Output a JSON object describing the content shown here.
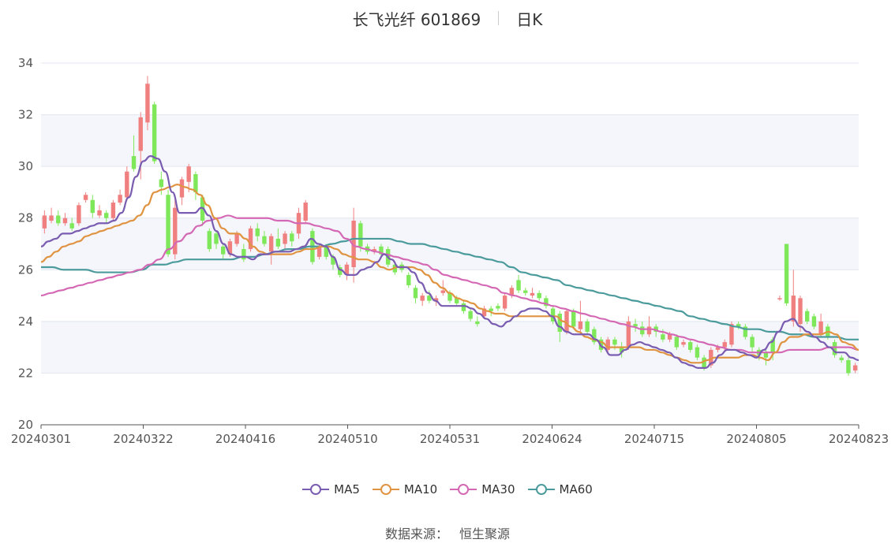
{
  "header": {
    "title": "长飞光纤 601869",
    "period": "日K"
  },
  "source": {
    "label": "数据来源：",
    "name": "恒生聚源"
  },
  "colors": {
    "up": "#f08080",
    "down": "#7ee85a",
    "ma5": "#7a5cb0",
    "ma10": "#e09442",
    "ma30": "#d468b4",
    "ma60": "#4c9b9c",
    "grid": "#e0e6f1",
    "band": "#f4f6fb"
  },
  "chart_data": {
    "type": "candlestick",
    "ylim": [
      20,
      34
    ],
    "yticks": [
      "20",
      "22",
      "24",
      "26",
      "28",
      "30",
      "32",
      "34"
    ],
    "xticks": [
      "20240301",
      "20240322",
      "20240416",
      "20240510",
      "20240531",
      "20240624",
      "20240715",
      "20240805",
      "20240823"
    ],
    "legend": [
      "MA5",
      "MA10",
      "MA30",
      "MA60"
    ],
    "candles": [
      [
        27.6,
        28.1,
        28.3,
        27.4
      ],
      [
        27.9,
        28.1,
        28.4,
        27.8
      ],
      [
        28.1,
        27.8,
        28.3,
        27.7
      ],
      [
        27.8,
        28.0,
        28.2,
        27.7
      ],
      [
        27.8,
        27.6,
        28.0,
        27.5
      ],
      [
        27.8,
        28.5,
        28.6,
        27.7
      ],
      [
        28.7,
        28.9,
        29.0,
        28.6
      ],
      [
        28.7,
        28.2,
        28.9,
        28.0
      ],
      [
        28.1,
        28.3,
        28.5,
        28.0
      ],
      [
        28.2,
        28.0,
        28.3,
        27.8
      ],
      [
        28.0,
        28.6,
        28.7,
        27.9
      ],
      [
        28.6,
        28.9,
        29.1,
        28.5
      ],
      [
        28.8,
        29.8,
        30.0,
        28.7
      ],
      [
        30.4,
        29.9,
        31.2,
        29.8
      ],
      [
        30.6,
        31.9,
        32.1,
        29.5
      ],
      [
        31.7,
        33.2,
        33.5,
        31.4
      ],
      [
        32.4,
        30.2,
        32.5,
        30.1
      ],
      [
        29.5,
        29.2,
        29.8,
        28.9
      ],
      [
        28.9,
        26.6,
        29.1,
        26.5
      ],
      [
        26.6,
        28.4,
        28.8,
        26.4
      ],
      [
        28.8,
        29.5,
        29.6,
        28.5
      ],
      [
        29.4,
        30.0,
        30.1,
        29.0
      ],
      [
        29.7,
        29.0,
        29.8,
        28.7
      ],
      [
        28.8,
        27.9,
        28.9,
        27.7
      ],
      [
        27.5,
        26.8,
        27.6,
        26.7
      ],
      [
        27.4,
        27.0,
        27.5,
        26.8
      ],
      [
        26.9,
        26.6,
        27.0,
        26.4
      ],
      [
        26.6,
        27.1,
        27.2,
        26.5
      ],
      [
        27.0,
        27.4,
        27.5,
        26.9
      ],
      [
        26.8,
        26.4,
        27.0,
        26.3
      ],
      [
        26.8,
        27.6,
        27.7,
        26.7
      ],
      [
        27.6,
        27.3,
        27.8,
        27.1
      ],
      [
        27.3,
        27.0,
        27.5,
        26.9
      ],
      [
        26.7,
        27.3,
        27.4,
        26.2
      ],
      [
        27.2,
        26.9,
        27.6,
        26.8
      ],
      [
        27.0,
        27.4,
        27.5,
        26.8
      ],
      [
        27.4,
        27.1,
        27.5,
        26.9
      ],
      [
        27.4,
        28.2,
        28.4,
        27.2
      ],
      [
        27.9,
        28.6,
        28.7,
        27.8
      ],
      [
        27.5,
        26.3,
        27.6,
        26.2
      ],
      [
        26.5,
        26.9,
        27.0,
        26.4
      ],
      [
        26.9,
        26.5,
        27.0,
        26.4
      ],
      [
        26.5,
        26.2,
        26.6,
        26.0
      ],
      [
        26.1,
        25.8,
        26.2,
        25.7
      ],
      [
        25.8,
        26.2,
        26.3,
        25.6
      ],
      [
        26.1,
        27.9,
        28.4,
        25.5
      ],
      [
        27.8,
        26.9,
        27.9,
        26.7
      ],
      [
        26.9,
        26.7,
        27.0,
        26.6
      ],
      [
        26.7,
        26.8,
        26.9,
        26.6
      ],
      [
        26.9,
        26.6,
        27.0,
        26.5
      ],
      [
        26.8,
        26.2,
        26.9,
        26.1
      ],
      [
        26.2,
        25.9,
        26.3,
        25.8
      ],
      [
        26.2,
        26.0,
        26.3,
        25.9
      ],
      [
        25.8,
        25.4,
        25.9,
        25.3
      ],
      [
        25.3,
        24.9,
        25.4,
        24.7
      ],
      [
        24.8,
        25.0,
        25.1,
        24.6
      ],
      [
        25.0,
        24.8,
        25.2,
        24.7
      ],
      [
        24.8,
        24.9,
        25.0,
        24.6
      ],
      [
        25.1,
        25.2,
        25.6,
        25.0
      ],
      [
        25.1,
        24.8,
        25.2,
        24.7
      ],
      [
        24.9,
        24.7,
        25.0,
        24.6
      ],
      [
        24.7,
        24.4,
        24.8,
        24.3
      ],
      [
        24.4,
        24.1,
        24.5,
        24.0
      ],
      [
        24.0,
        23.9,
        24.2,
        23.8
      ],
      [
        24.2,
        24.5,
        24.6,
        24.1
      ],
      [
        24.5,
        24.4,
        24.6,
        24.2
      ],
      [
        24.6,
        24.5,
        24.7,
        24.4
      ],
      [
        24.5,
        25.0,
        25.1,
        24.4
      ],
      [
        25.0,
        25.3,
        25.4,
        24.9
      ],
      [
        25.6,
        25.2,
        25.8,
        25.1
      ],
      [
        25.2,
        25.1,
        25.3,
        25.0
      ],
      [
        25.0,
        25.1,
        25.3,
        24.9
      ],
      [
        25.1,
        24.9,
        25.2,
        24.8
      ],
      [
        24.9,
        24.6,
        25.0,
        24.5
      ],
      [
        24.5,
        24.0,
        24.6,
        23.9
      ],
      [
        24.3,
        23.6,
        24.4,
        23.2
      ],
      [
        23.6,
        24.4,
        24.5,
        23.5
      ],
      [
        24.4,
        23.8,
        24.5,
        23.7
      ],
      [
        23.7,
        24.0,
        24.8,
        23.5
      ],
      [
        24.0,
        23.6,
        24.1,
        23.5
      ],
      [
        23.7,
        23.2,
        23.8,
        23.1
      ],
      [
        23.3,
        22.9,
        23.4,
        22.8
      ],
      [
        22.9,
        23.3,
        23.4,
        22.8
      ],
      [
        23.3,
        23.1,
        23.4,
        22.9
      ],
      [
        23.0,
        22.8,
        23.2,
        22.6
      ],
      [
        23.0,
        24.0,
        24.2,
        22.9
      ],
      [
        23.9,
        23.8,
        24.1,
        23.6
      ],
      [
        23.8,
        23.5,
        24.0,
        23.4
      ],
      [
        23.5,
        23.8,
        24.2,
        23.4
      ],
      [
        23.8,
        23.6,
        23.9,
        23.4
      ],
      [
        23.5,
        23.3,
        23.7,
        23.2
      ],
      [
        23.3,
        23.5,
        23.6,
        23.2
      ],
      [
        23.4,
        23.0,
        23.5,
        22.9
      ],
      [
        23.1,
        23.2,
        23.3,
        23.0
      ],
      [
        23.2,
        22.9,
        23.3,
        22.8
      ],
      [
        23.0,
        22.6,
        23.1,
        22.5
      ],
      [
        22.6,
        22.2,
        22.7,
        22.1
      ],
      [
        22.3,
        22.9,
        23.0,
        22.2
      ],
      [
        22.9,
        23.0,
        23.1,
        22.8
      ],
      [
        23.0,
        23.2,
        23.3,
        22.9
      ],
      [
        23.1,
        23.9,
        24.0,
        23.0
      ],
      [
        23.9,
        23.8,
        24.0,
        23.7
      ],
      [
        23.8,
        23.4,
        23.9,
        23.3
      ],
      [
        23.4,
        23.0,
        23.5,
        22.8
      ],
      [
        22.9,
        22.7,
        23.0,
        22.5
      ],
      [
        22.8,
        22.6,
        22.9,
        22.3
      ],
      [
        23.3,
        22.8,
        23.4,
        22.5
      ],
      [
        24.9,
        24.9,
        25.0,
        24.8
      ],
      [
        27.0,
        24.7,
        27.0,
        24.6
      ],
      [
        24.0,
        25.0,
        26.0,
        23.8
      ],
      [
        23.9,
        24.9,
        25.0,
        23.6
      ],
      [
        24.4,
        24.0,
        24.5,
        23.9
      ],
      [
        24.2,
        23.8,
        24.3,
        23.7
      ],
      [
        23.5,
        24.0,
        24.3,
        23.4
      ],
      [
        23.8,
        23.4,
        23.9,
        23.3
      ],
      [
        23.2,
        22.7,
        23.3,
        22.6
      ],
      [
        22.6,
        22.5,
        22.7,
        22.4
      ],
      [
        22.5,
        22.0,
        22.6,
        21.9
      ],
      [
        22.1,
        22.3,
        22.4,
        22.0
      ]
    ],
    "ma5": [
      26.9,
      27.1,
      27.2,
      27.4,
      27.4,
      27.5,
      27.6,
      27.7,
      27.8,
      27.8,
      27.9,
      28.2,
      28.8,
      29.6,
      30.2,
      30.4,
      30.3,
      29.8,
      29.0,
      28.2,
      28.2,
      28.2,
      28.4,
      28.1,
      27.5,
      27.0,
      26.6,
      26.5,
      26.5,
      26.4,
      26.6,
      26.6,
      26.7,
      26.7,
      26.7,
      26.8,
      26.9,
      27.2,
      27.0,
      26.9,
      26.5,
      26.0,
      25.8,
      25.8,
      26.0,
      26.1,
      26.3,
      26.6,
      26.4,
      26.1,
      26.1,
      25.9,
      25.5,
      25.1,
      24.8,
      24.6,
      24.6,
      24.6,
      24.6,
      24.5,
      24.3,
      24.1,
      23.9,
      23.8,
      24.0,
      24.2,
      24.4,
      24.5,
      24.5,
      24.4,
      24.2,
      23.8,
      23.6,
      23.5,
      23.5,
      23.5,
      23.3,
      23.0,
      22.7,
      22.7,
      22.9,
      23.1,
      23.2,
      23.1,
      23.0,
      22.9,
      22.8,
      22.6,
      22.4,
      22.3,
      22.2,
      22.2,
      22.4,
      22.7,
      22.9,
      22.9,
      22.8,
      22.7,
      22.6,
      22.9,
      23.2,
      23.6,
      24.0,
      24.1,
      23.8,
      23.6,
      23.4,
      23.2,
      23.0,
      22.8,
      22.8,
      22.6,
      22.5
    ],
    "ma10": [
      26.3,
      26.5,
      26.7,
      26.9,
      27.0,
      27.1,
      27.3,
      27.4,
      27.5,
      27.6,
      27.7,
      27.8,
      27.9,
      28.1,
      28.5,
      29.0,
      29.1,
      29.2,
      29.3,
      29.2,
      29.1,
      28.9,
      28.5,
      28.0,
      27.6,
      27.4,
      27.4,
      27.2,
      26.9,
      26.7,
      26.6,
      26.6,
      26.6,
      26.6,
      26.7,
      26.8,
      26.8,
      26.9,
      26.9,
      26.8,
      26.6,
      26.5,
      26.4,
      26.4,
      26.3,
      26.1,
      26.0,
      26.1,
      26.1,
      26.1,
      26.0,
      25.8,
      25.5,
      25.3,
      25.1,
      24.9,
      24.8,
      24.7,
      24.5,
      24.4,
      24.3,
      24.3,
      24.2,
      24.2,
      24.2,
      24.2,
      24.2,
      24.2,
      24.2,
      24.0,
      23.8,
      23.6,
      23.4,
      23.3,
      23.2,
      23.0,
      23.0,
      23.0,
      23.0,
      23.0,
      22.9,
      22.9,
      22.8,
      22.7,
      22.6,
      22.5,
      22.4,
      22.4,
      22.5,
      22.6,
      22.6,
      22.6,
      22.6,
      22.7,
      22.7,
      22.6,
      22.5,
      22.8,
      23.2,
      23.4,
      23.4,
      23.5,
      23.5,
      23.5,
      23.6,
      23.5,
      23.2,
      23.1,
      22.9
    ],
    "ma30": [
      25.0,
      25.1,
      25.2,
      25.3,
      25.4,
      25.5,
      25.6,
      25.7,
      25.8,
      25.9,
      26.0,
      26.2,
      26.4,
      26.8,
      27.1,
      27.4,
      27.7,
      27.9,
      28.0,
      28.1,
      28.0,
      28.0,
      28.0,
      28.0,
      27.9,
      27.9,
      27.8,
      27.8,
      27.7,
      27.6,
      27.5,
      27.2,
      26.9,
      26.8,
      26.7,
      26.6,
      26.5,
      26.4,
      26.3,
      26.2,
      26.0,
      25.8,
      25.7,
      25.6,
      25.5,
      25.4,
      25.3,
      25.1,
      25.0,
      24.9,
      24.8,
      24.7,
      24.6,
      24.5,
      24.4,
      24.3,
      24.2,
      24.1,
      24.0,
      23.9,
      23.8,
      23.7,
      23.7,
      23.6,
      23.5,
      23.4,
      23.3,
      23.2,
      23.1,
      23.0,
      22.9,
      22.9,
      22.8,
      22.8,
      22.8,
      22.8,
      22.9,
      22.9,
      22.9,
      22.9,
      23.0,
      23.0,
      23.0,
      22.9
    ],
    "ma60": [
      26.1,
      26.1,
      26.0,
      26.0,
      26.0,
      25.9,
      25.9,
      25.9,
      25.9,
      26.0,
      26.2,
      26.2,
      26.3,
      26.4,
      26.4,
      26.4,
      26.4,
      26.4,
      26.5,
      26.5,
      26.6,
      26.7,
      26.8,
      26.8,
      26.9,
      26.9,
      27.0,
      27.1,
      27.2,
      27.2,
      27.2,
      27.2,
      27.1,
      27.0,
      27.0,
      26.9,
      26.8,
      26.7,
      26.6,
      26.5,
      26.4,
      26.3,
      26.1,
      25.9,
      25.8,
      25.7,
      25.6,
      25.4,
      25.3,
      25.2,
      25.1,
      25.0,
      24.9,
      24.8,
      24.7,
      24.6,
      24.5,
      24.4,
      24.2,
      24.1,
      24.0,
      23.9,
      23.8,
      23.7,
      23.7,
      23.6,
      23.6,
      23.5,
      23.5,
      23.4,
      23.4,
      23.4,
      23.3,
      23.3
    ]
  }
}
